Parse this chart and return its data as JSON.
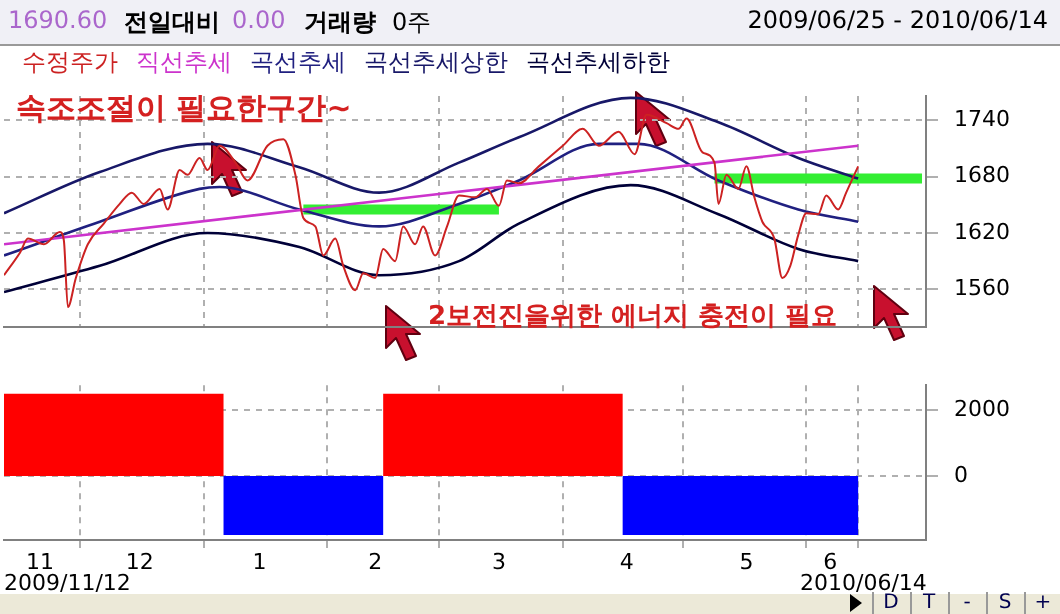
{
  "chart_data": [
    {
      "type": "line",
      "annotations": [
        "1690.60",
        "전일대비",
        "0.00",
        "거래량",
        "0주",
        "2009/06/25 - 2010/06/14",
        "속조조절이 필요한구간~",
        "2보전진을위한 에너지 충전이 필요"
      ],
      "legend": "top left",
      "grid": true,
      "tick_labels": "y",
      "xlim": [
        "2009-11-12",
        "2010-07-01"
      ],
      "xticks": [
        {
          "value": "2009-12-01",
          "label": null
        },
        {
          "value": "2010-01-01",
          "label": null
        },
        {
          "value": "2010-02-01",
          "label": null
        },
        {
          "value": "2010-03-01",
          "label": null
        },
        {
          "value": "2010-04-01",
          "label": null
        },
        {
          "value": "2010-05-01",
          "label": null
        },
        {
          "value": "2010-06-01",
          "label": null
        },
        {
          "value": "2010-06-14",
          "label": null
        }
      ],
      "ylim": [
        1520,
        1766
      ],
      "yticks": [
        1560,
        1620,
        1680,
        1740
      ],
      "series": [
        {
          "name": "수정주가",
          "color": "#cc2222",
          "x": [
            "2009-11-12",
            "2009-11-16",
            "2009-11-18",
            "2009-11-22",
            "2009-11-26",
            "2009-11-27",
            "2009-11-28",
            "2009-11-30",
            "2009-12-03",
            "2009-12-07",
            "2009-12-11",
            "2009-12-14",
            "2009-12-17",
            "2009-12-21",
            "2009-12-23",
            "2009-12-26",
            "2009-12-28",
            "2009-12-31",
            "2010-01-02",
            "2010-01-05",
            "2010-01-09",
            "2010-01-12",
            "2010-01-17",
            "2010-01-21",
            "2010-01-24",
            "2010-01-26",
            "2010-01-29",
            "2010-01-31",
            "2010-02-03",
            "2010-02-05",
            "2010-02-08",
            "2010-02-10",
            "2010-02-13",
            "2010-02-15",
            "2010-02-18",
            "2010-02-20",
            "2010-02-23",
            "2010-02-25",
            "2010-02-28",
            "2010-03-03",
            "2010-03-06",
            "2010-03-10",
            "2010-03-13",
            "2010-03-16",
            "2010-03-18",
            "2010-03-21",
            "2010-03-26",
            "2010-04-01",
            "2010-04-06",
            "2010-04-10",
            "2010-04-15",
            "2010-04-19",
            "2010-04-22",
            "2010-04-27",
            "2010-04-30",
            "2010-05-02",
            "2010-05-06",
            "2010-05-09",
            "2010-05-10",
            "2010-05-12",
            "2010-05-15",
            "2010-05-17",
            "2010-05-19",
            "2010-05-21",
            "2010-05-24",
            "2010-05-26",
            "2010-05-28",
            "2010-05-30",
            "2010-06-01",
            "2010-06-04",
            "2010-06-06",
            "2010-06-09",
            "2010-06-11",
            "2010-06-14"
          ],
          "values": [
            1575,
            1599,
            1614,
            1608,
            1621,
            1612,
            1541,
            1572,
            1608,
            1630,
            1651,
            1663,
            1651,
            1667,
            1645,
            1687,
            1682,
            1700,
            1687,
            1713,
            1695,
            1676,
            1713,
            1720,
            1682,
            1636,
            1627,
            1596,
            1614,
            1585,
            1559,
            1577,
            1572,
            1603,
            1590,
            1627,
            1608,
            1627,
            1596,
            1627,
            1660,
            1658,
            1667,
            1649,
            1676,
            1673,
            1691,
            1713,
            1731,
            1713,
            1728,
            1704,
            1746,
            1737,
            1731,
            1742,
            1706,
            1695,
            1651,
            1682,
            1667,
            1691,
            1658,
            1632,
            1614,
            1572,
            1585,
            1618,
            1641,
            1640,
            1660,
            1645,
            1663,
            1691
          ]
        },
        {
          "name": "직선추세",
          "color": "#cc33cc",
          "x": [
            "2009-11-12",
            "2010-06-14"
          ],
          "values": [
            1608,
            1713
          ]
        },
        {
          "name": "곡선추세",
          "color": "#202080",
          "x": [
            "2009-11-12",
            "2009-12-06",
            "2009-12-31",
            "2010-01-05",
            "2010-01-25",
            "2010-02-14",
            "2010-03-06",
            "2010-03-21",
            "2010-04-10",
            "2010-04-20",
            "2010-05-10",
            "2010-05-30",
            "2010-06-14"
          ],
          "values": [
            1596,
            1632,
            1667,
            1669,
            1645,
            1627,
            1651,
            1676,
            1715,
            1715,
            1676,
            1645,
            1632
          ]
        },
        {
          "name": "곡선추세상한",
          "color": "#181868",
          "x": [
            "2009-11-12",
            "2009-12-06",
            "2010-01-02",
            "2010-01-25",
            "2010-02-14",
            "2010-03-06",
            "2010-03-21",
            "2010-04-18",
            "2010-05-10",
            "2010-05-30",
            "2010-06-14"
          ],
          "values": [
            1641,
            1685,
            1715,
            1690,
            1663,
            1695,
            1722,
            1764,
            1738,
            1700,
            1678
          ]
        },
        {
          "name": "곡선추세하한",
          "color": "#000038",
          "x": [
            "2009-11-12",
            "2009-12-06",
            "2010-01-02",
            "2010-01-25",
            "2010-02-14",
            "2010-03-06",
            "2010-03-21",
            "2010-04-18",
            "2010-05-10",
            "2010-05-30",
            "2010-06-14"
          ],
          "values": [
            1557,
            1585,
            1620,
            1605,
            1575,
            1590,
            1630,
            1671,
            1640,
            1603,
            1590
          ]
        },
        {
          "color": "#33ee33",
          "x": [
            "2010-01-26",
            "2010-03-16"
          ],
          "values": [
            1645,
            1645
          ]
        },
        {
          "color": "#33ee33",
          "x": [
            "2010-05-09",
            "2010-06-30"
          ],
          "values": [
            1678,
            1678
          ]
        }
      ]
    },
    {
      "type": "histogram",
      "annotations": [
        "2009/11/12",
        "2010/06/14",
        "D",
        "T",
        "-",
        "S",
        "+"
      ],
      "grid": true,
      "xlim": [
        "2009-11-12",
        "2010-07-01"
      ],
      "xticks": [
        {
          "value": "2009-11-21",
          "label": "11"
        },
        {
          "value": "2009-12-01",
          "label": null
        },
        {
          "value": "2009-12-16",
          "label": "12"
        },
        {
          "value": "2010-01-01",
          "label": null
        },
        {
          "value": "2010-01-15",
          "label": "1"
        },
        {
          "value": "2010-02-01",
          "label": null
        },
        {
          "value": "2010-02-13",
          "label": "2"
        },
        {
          "value": "2010-03-01",
          "label": null
        },
        {
          "value": "2010-03-16",
          "label": "3"
        },
        {
          "value": "2010-04-01",
          "label": null
        },
        {
          "value": "2010-04-17",
          "label": "4"
        },
        {
          "value": "2010-05-01",
          "label": null
        },
        {
          "value": "2010-05-17",
          "label": "5"
        },
        {
          "value": "2010-06-01",
          "label": null
        },
        {
          "value": "2010-06-07",
          "label": "6"
        },
        {
          "value": "2010-06-14",
          "label": null
        }
      ],
      "ylim": [
        -1950,
        2770
      ],
      "yticks": [
        0,
        2000
      ],
      "bins": [
        "2009-11-12",
        "2010-01-06",
        "2010-02-15",
        "2010-04-16",
        "2010-06-14"
      ],
      "values": [
        2510,
        -1800,
        2510,
        -1800
      ],
      "colors": [
        "#ff0000",
        "#0000ff",
        "#ff0000",
        "#0000ff"
      ]
    }
  ]
}
